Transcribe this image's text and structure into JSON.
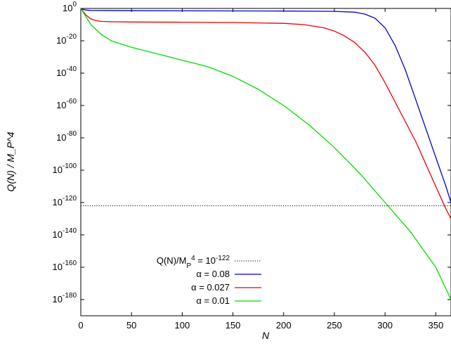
{
  "chart_data": {
    "type": "line",
    "xlabel": "N",
    "ylabel": "Q(N) / M_P^4",
    "xlim": [
      0,
      365
    ],
    "ylim": [
      -190,
      0
    ],
    "y_scale": "log10",
    "x_ticks": [
      0,
      50,
      100,
      150,
      200,
      250,
      300,
      350
    ],
    "y_ticks": [
      0,
      -20,
      -40,
      -60,
      -80,
      -100,
      -120,
      -140,
      -160,
      -180
    ],
    "y_tick_base": "10",
    "grid": false,
    "legend": "bottom-left",
    "series": [
      {
        "name": "Q(N)/M_P^4 = 10^-122",
        "style": "dotted",
        "color": "#000000",
        "x": [
          0,
          365
        ],
        "y": [
          -122,
          -122
        ]
      },
      {
        "name": "α = 0.08",
        "style": "solid",
        "color": "#0000cc",
        "x": [
          0,
          2,
          5,
          10,
          50,
          100,
          200,
          250,
          270,
          280,
          290,
          300,
          310,
          320,
          330,
          340,
          350,
          360,
          365
        ],
        "y": [
          0,
          -0.5,
          -1,
          -1.2,
          -1.4,
          -1.5,
          -1.6,
          -1.8,
          -2.3,
          -3.5,
          -6,
          -12,
          -23,
          -38,
          -56,
          -74,
          -92,
          -110,
          -120
        ]
      },
      {
        "name": "α = 0.027",
        "style": "solid",
        "color": "#ee0000",
        "x": [
          0,
          5,
          10,
          15,
          20,
          30,
          50,
          100,
          150,
          200,
          220,
          240,
          250,
          260,
          270,
          280,
          290,
          300,
          310,
          320,
          330,
          340,
          350,
          360,
          365
        ],
        "y": [
          0,
          -4,
          -6.5,
          -7.5,
          -8,
          -8.2,
          -8.4,
          -8.5,
          -8.7,
          -9.2,
          -10,
          -12,
          -14,
          -17,
          -21,
          -27,
          -35,
          -46,
          -58,
          -70,
          -82,
          -96,
          -110,
          -124,
          -130
        ]
      },
      {
        "name": "α = 0.01",
        "style": "solid",
        "color": "#00dd00",
        "x": [
          0,
          5,
          10,
          20,
          30,
          40,
          50,
          75,
          100,
          125,
          150,
          175,
          200,
          225,
          250,
          275,
          300,
          325,
          350,
          365
        ],
        "y": [
          0,
          -5,
          -10,
          -16,
          -20,
          -22,
          -24,
          -28,
          -32,
          -36,
          -42,
          -50,
          -60,
          -72,
          -86,
          -102,
          -120,
          -138,
          -160,
          -180
        ]
      }
    ]
  }
}
